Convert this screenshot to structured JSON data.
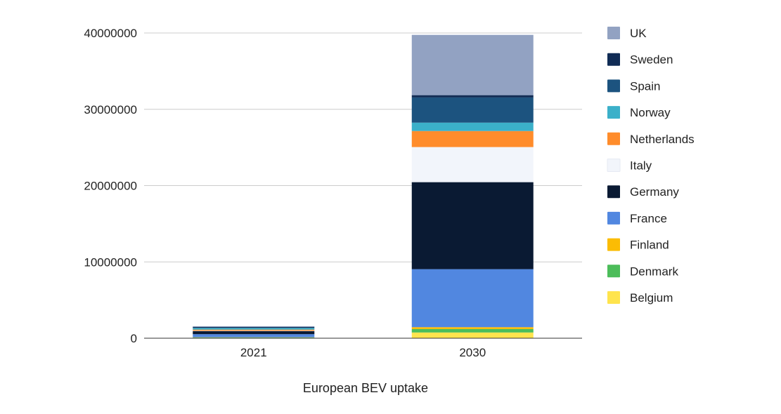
{
  "chart_data": {
    "type": "bar",
    "stacked": true,
    "title": "",
    "xlabel": "European BEV uptake",
    "ylabel": "",
    "ylim": [
      0,
      40000000
    ],
    "yticks": [
      0,
      10000000,
      20000000,
      30000000,
      40000000
    ],
    "ytick_labels": [
      "0",
      "10000000",
      "20000000",
      "30000000",
      "40000000"
    ],
    "grid": true,
    "legend_position": "right",
    "categories": [
      "2021",
      "2030"
    ],
    "series": [
      {
        "name": "Belgium",
        "color": "#ffe44d",
        "values": [
          60000,
          750000
        ]
      },
      {
        "name": "Denmark",
        "color": "#4cbd5a",
        "values": [
          50000,
          450000
        ]
      },
      {
        "name": "Finland",
        "color": "#fbbc04",
        "values": [
          20000,
          250000
        ]
      },
      {
        "name": "France",
        "color": "#5187e0",
        "values": [
          400000,
          7600000
        ]
      },
      {
        "name": "Germany",
        "color": "#0a1a33",
        "values": [
          400000,
          11400000
        ]
      },
      {
        "name": "Italy",
        "color": "#f2f5fb",
        "values": [
          50000,
          4600000
        ]
      },
      {
        "name": "Netherlands",
        "color": "#ff8c2b",
        "values": [
          150000,
          2100000
        ]
      },
      {
        "name": "Norway",
        "color": "#3bb0c9",
        "values": [
          200000,
          1100000
        ]
      },
      {
        "name": "Spain",
        "color": "#1c537f",
        "values": [
          40000,
          3300000
        ]
      },
      {
        "name": "Sweden",
        "color": "#102c55",
        "values": [
          100000,
          300000
        ]
      },
      {
        "name": "UK",
        "color": "#92a2c2",
        "values": [
          100000,
          7900000
        ]
      }
    ],
    "legend_order": [
      "UK",
      "Sweden",
      "Spain",
      "Norway",
      "Netherlands",
      "Italy",
      "Germany",
      "France",
      "Finland",
      "Denmark",
      "Belgium"
    ]
  }
}
